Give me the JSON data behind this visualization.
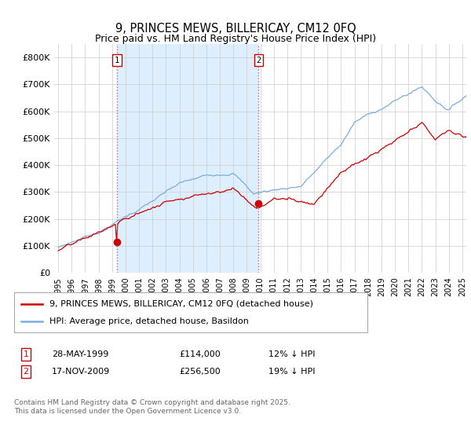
{
  "title": "9, PRINCES MEWS, BILLERICAY, CM12 0FQ",
  "subtitle": "Price paid vs. HM Land Registry's House Price Index (HPI)",
  "property_label": "9, PRINCES MEWS, BILLERICAY, CM12 0FQ (detached house)",
  "hpi_label": "HPI: Average price, detached house, Basildon",
  "footnote": "Contains HM Land Registry data © Crown copyright and database right 2025.\nThis data is licensed under the Open Government Licence v3.0.",
  "vline_color": "#dd6666",
  "vline_style": ":",
  "property_color": "#cc0000",
  "hpi_color": "#7aaddd",
  "shade_color": "#ddeeff",
  "background_color": "#ffffff",
  "grid_color": "#cccccc",
  "ylim": [
    0,
    850000
  ],
  "yticks": [
    0,
    100000,
    200000,
    300000,
    400000,
    500000,
    600000,
    700000,
    800000
  ],
  "ytick_labels": [
    "£0",
    "£100K",
    "£200K",
    "£300K",
    "£400K",
    "£500K",
    "£600K",
    "£700K",
    "£800K"
  ],
  "year_start": 1995,
  "year_end": 2025,
  "t1_year": 1999.375,
  "t2_year": 2009.875,
  "t1_price": 114000,
  "t2_price": 256500
}
